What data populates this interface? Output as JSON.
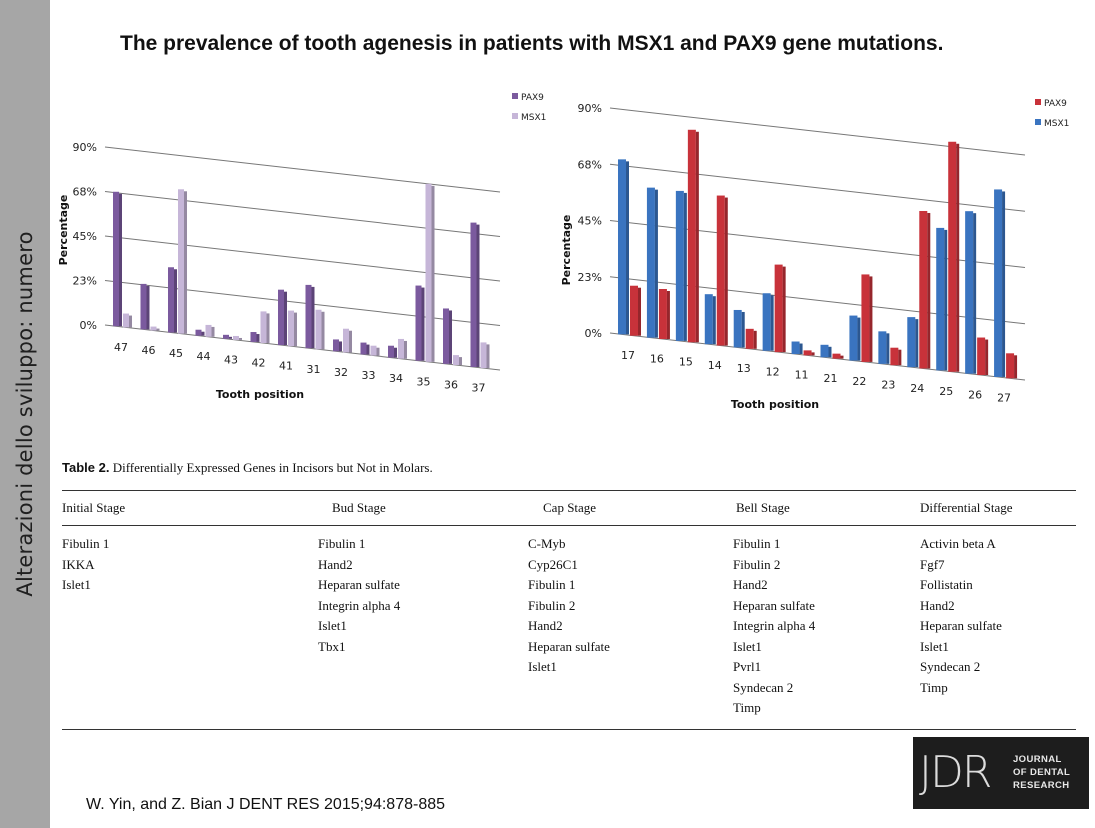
{
  "sidebar": {
    "text": "Alterazioni dello sviluppo: numero"
  },
  "slide_title": "The prevalence of tooth agenesis in patients with MSX1 and PAX9 gene mutations.",
  "chart_data": [
    {
      "type": "bar",
      "title": "",
      "xlabel": "Tooth position",
      "ylabel": "Percentage",
      "yticks": [
        "0%",
        "23%",
        "45%",
        "68%",
        "90%"
      ],
      "ylim": [
        0,
        90
      ],
      "grid": true,
      "legend_position": "top-right",
      "categories": [
        "47",
        "46",
        "45",
        "44",
        "43",
        "42",
        "41",
        "31",
        "32",
        "33",
        "34",
        "35",
        "36",
        "37"
      ],
      "series": [
        {
          "name": "PAX9",
          "color": "#7b5a9e",
          "values": [
            68,
            23,
            33,
            3,
            2,
            5,
            28,
            32,
            6,
            6,
            6,
            38,
            28,
            73
          ]
        },
        {
          "name": "MSX1",
          "color": "#c6b6d8",
          "values": [
            7,
            2,
            73,
            6,
            2,
            16,
            18,
            20,
            12,
            5,
            10,
            90,
            5,
            13
          ]
        }
      ]
    },
    {
      "type": "bar",
      "title": "",
      "xlabel": "Tooth position",
      "ylabel": "Percentage",
      "yticks": [
        "0%",
        "23%",
        "45%",
        "68%",
        "90%"
      ],
      "ylim": [
        0,
        90
      ],
      "grid": true,
      "legend_position": "top-right",
      "categories": [
        "17",
        "16",
        "15",
        "14",
        "13",
        "12",
        "11",
        "21",
        "22",
        "23",
        "24",
        "25",
        "26",
        "27"
      ],
      "series": [
        {
          "name": "PAX9",
          "color": "#c8323a",
          "values": [
            20,
            20,
            85,
            60,
            8,
            35,
            2,
            2,
            35,
            7,
            63,
            92,
            15,
            10
          ]
        },
        {
          "name": "MSX1",
          "color": "#3a74c0",
          "values": [
            70,
            60,
            60,
            20,
            15,
            23,
            5,
            5,
            18,
            13,
            20,
            57,
            65,
            75
          ]
        }
      ]
    }
  ],
  "table": {
    "caption_label": "Table 2.",
    "caption_text": "Differentially Expressed Genes in Incisors but Not in Molars.",
    "headers": [
      "Initial Stage",
      "Bud Stage",
      "Cap Stage",
      "Bell Stage",
      "Differential Stage"
    ],
    "columns": [
      [
        "Fibulin 1",
        "IKKA",
        "Islet1"
      ],
      [
        "Fibulin 1",
        "Hand2",
        "Heparan sulfate",
        "Integrin alpha 4",
        "Islet1",
        "Tbx1"
      ],
      [
        "C-Myb",
        "Cyp26C1",
        "Fibulin 1",
        "Fibulin 2",
        "Hand2",
        "Heparan sulfate",
        "Islet1"
      ],
      [
        "Fibulin 1",
        "Fibulin 2",
        "Hand2",
        "Heparan sulfate",
        "Integrin alpha 4",
        "Islet1",
        "Pvrl1",
        "Syndecan 2",
        "Timp"
      ],
      [
        "Activin beta A",
        "Fgf7",
        "Follistatin",
        "Hand2",
        "Heparan sulfate",
        "Islet1",
        "Syndecan 2",
        "Timp"
      ]
    ]
  },
  "citation": "W. Yin, and Z. Bian J DENT RES 2015;94:878-885",
  "logo": {
    "mark": "JDR",
    "lines": [
      "JOURNAL",
      "OF DENTAL",
      "RESEARCH"
    ]
  }
}
